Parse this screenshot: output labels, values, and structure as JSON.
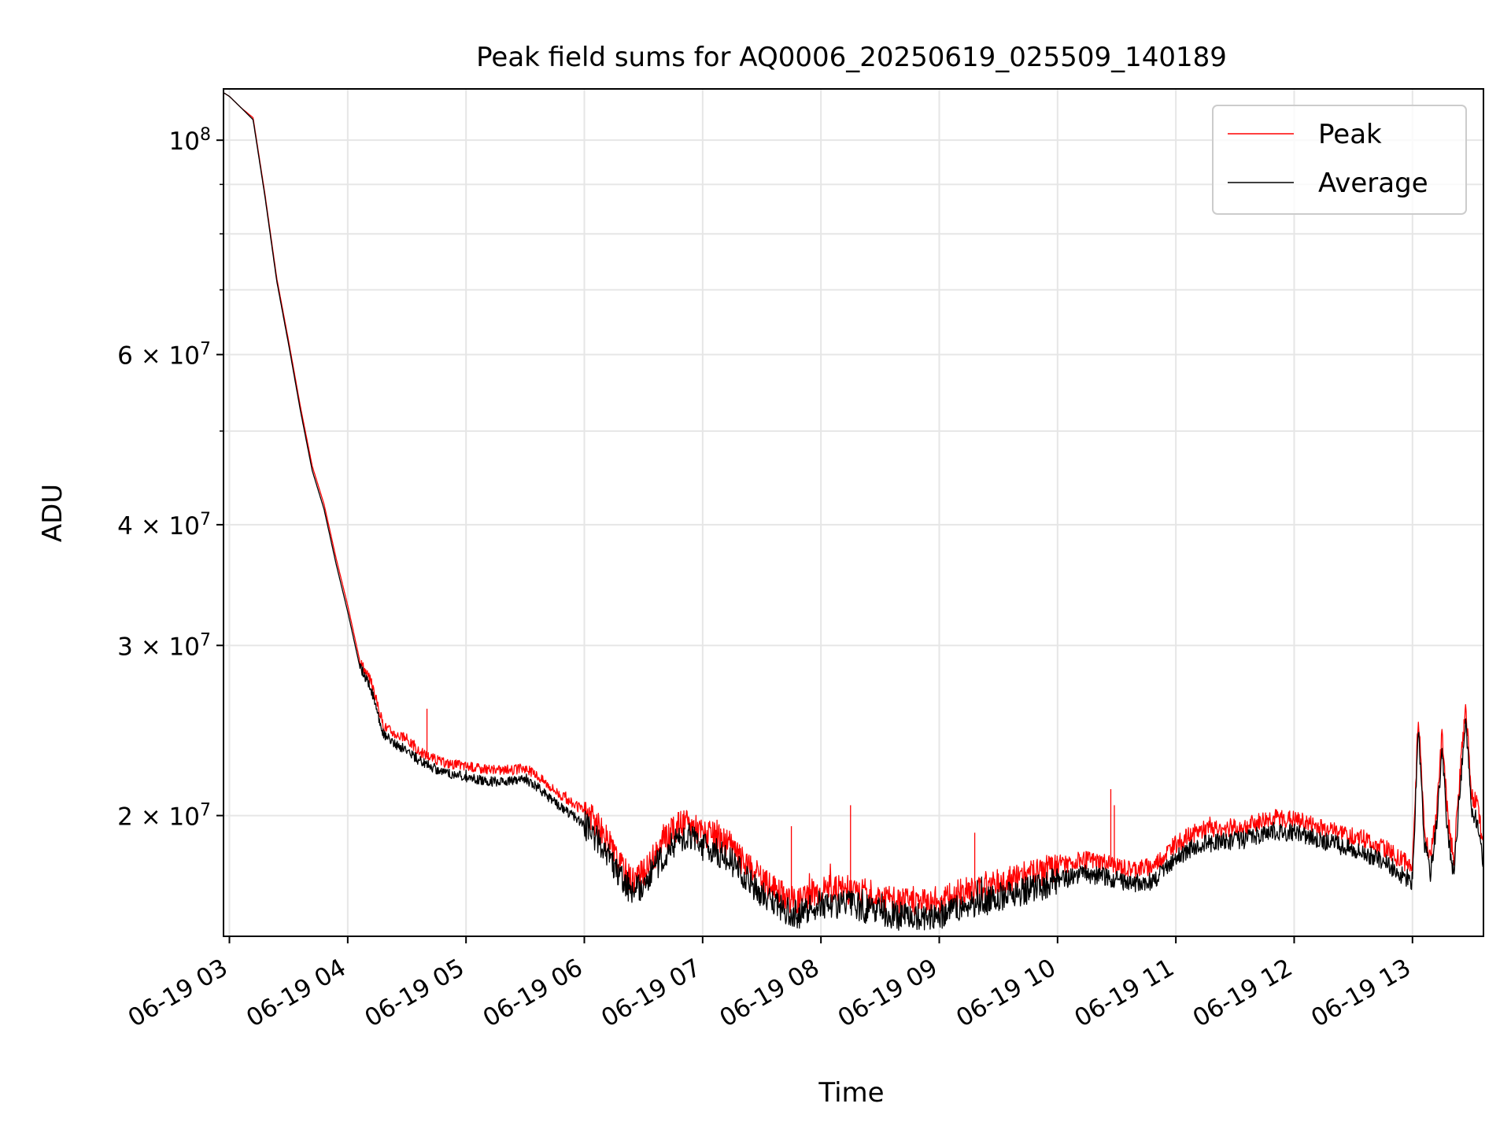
{
  "chart_data": {
    "type": "line",
    "title": "Peak field sums for AQ0006_20250619_025509_140189",
    "xlabel": "Time",
    "ylabel": "ADU",
    "x_unit": "hour of 2025-06-19",
    "xlim": [
      2.95,
      13.6
    ],
    "ylim": [
      15000000,
      113000000
    ],
    "yscale": "log",
    "grid": true,
    "legend_position": "top-right",
    "x_ticks": [
      {
        "value": 3,
        "label": "06-19 03"
      },
      {
        "value": 4,
        "label": "06-19 04"
      },
      {
        "value": 5,
        "label": "06-19 05"
      },
      {
        "value": 6,
        "label": "06-19 06"
      },
      {
        "value": 7,
        "label": "06-19 07"
      },
      {
        "value": 8,
        "label": "06-19 08"
      },
      {
        "value": 9,
        "label": "06-19 09"
      },
      {
        "value": 10,
        "label": "06-19 10"
      },
      {
        "value": 11,
        "label": "06-19 11"
      },
      {
        "value": 12,
        "label": "06-19 12"
      },
      {
        "value": 13,
        "label": "06-19 13"
      }
    ],
    "y_ticks": [
      {
        "value": 100000000,
        "base": "10",
        "exp": "8"
      },
      {
        "value": 60000000,
        "base": "6 × 10",
        "exp": "7"
      },
      {
        "value": 40000000,
        "base": "4 × 10",
        "exp": "7"
      },
      {
        "value": 30000000,
        "base": "3 × 10",
        "exp": "7"
      },
      {
        "value": 20000000,
        "base": "2 × 10",
        "exp": "7"
      }
    ],
    "y_minor_ticks": [
      50000000,
      70000000,
      80000000,
      90000000
    ],
    "series": [
      {
        "name": "Peak",
        "color": "#ff0000",
        "x": [
          2.95,
          3.0,
          3.1,
          3.2,
          3.3,
          3.4,
          3.5,
          3.6,
          3.7,
          3.8,
          3.9,
          4.0,
          4.1,
          4.2,
          4.3,
          4.4,
          4.5,
          4.6,
          4.7,
          4.8,
          5.0,
          5.2,
          5.4,
          5.5,
          5.6,
          5.7,
          5.8,
          6.0,
          6.1,
          6.2,
          6.3,
          6.4,
          6.5,
          6.6,
          6.7,
          6.8,
          6.9,
          7.0,
          7.2,
          7.4,
          7.6,
          7.8,
          7.9,
          8.0,
          8.2,
          8.5,
          8.7,
          9.0,
          9.3,
          9.5,
          9.7,
          10.0,
          10.2,
          10.4,
          10.6,
          10.8,
          11.0,
          11.2,
          11.4,
          11.6,
          11.8,
          12.0,
          12.2,
          12.4,
          12.6,
          12.8,
          12.9,
          13.0,
          13.05,
          13.1,
          13.15,
          13.2,
          13.25,
          13.3,
          13.35,
          13.4,
          13.45,
          13.5,
          13.55,
          13.6
        ],
        "values": [
          112000000,
          111000000,
          108000000,
          105500000,
          88000000,
          72000000,
          62000000,
          53000000,
          46000000,
          42000000,
          37000000,
          33000000,
          29000000,
          27500000,
          24800000,
          24300000,
          24000000,
          23300000,
          23000000,
          22700000,
          22500000,
          22300000,
          22300000,
          22400000,
          22000000,
          21500000,
          21000000,
          20200000,
          19600000,
          18800000,
          17800000,
          17200000,
          17400000,
          18200000,
          19000000,
          19600000,
          19600000,
          19200000,
          18800000,
          17600000,
          16800000,
          16300000,
          16600000,
          16800000,
          16800000,
          16500000,
          16300000,
          16400000,
          16800000,
          17100000,
          17300000,
          17700000,
          18000000,
          17900000,
          17600000,
          17700000,
          18700000,
          19300000,
          19400000,
          19500000,
          19900000,
          19800000,
          19500000,
          19200000,
          18900000,
          18400000,
          18000000,
          17700000,
          25500000,
          19500000,
          18000000,
          20000000,
          24200000,
          19800000,
          18000000,
          22000000,
          26000000,
          21000000,
          20500000,
          18500000
        ]
      },
      {
        "name": "Average",
        "color": "#000000",
        "x": [
          2.95,
          3.0,
          3.1,
          3.2,
          3.3,
          3.4,
          3.5,
          3.6,
          3.7,
          3.8,
          3.9,
          4.0,
          4.1,
          4.2,
          4.3,
          4.4,
          4.5,
          4.6,
          4.7,
          4.8,
          5.0,
          5.2,
          5.4,
          5.5,
          5.6,
          5.7,
          5.8,
          6.0,
          6.1,
          6.2,
          6.3,
          6.4,
          6.5,
          6.6,
          6.7,
          6.8,
          6.9,
          7.0,
          7.2,
          7.4,
          7.6,
          7.8,
          7.9,
          8.0,
          8.2,
          8.5,
          8.7,
          9.0,
          9.3,
          9.5,
          9.7,
          10.0,
          10.2,
          10.4,
          10.6,
          10.8,
          11.0,
          11.2,
          11.4,
          11.6,
          11.8,
          12.0,
          12.2,
          12.4,
          12.6,
          12.8,
          12.9,
          13.0,
          13.05,
          13.1,
          13.15,
          13.2,
          13.25,
          13.3,
          13.35,
          13.4,
          13.45,
          13.5,
          13.55,
          13.6
        ],
        "values": [
          112000000,
          111000000,
          108000000,
          105000000,
          87500000,
          71500000,
          61500000,
          52500000,
          45500000,
          41500000,
          36500000,
          32500000,
          28600000,
          27000000,
          24300000,
          23700000,
          23400000,
          22800000,
          22500000,
          22200000,
          21900000,
          21700000,
          21700000,
          21800000,
          21400000,
          20900000,
          20400000,
          19600000,
          19000000,
          18200000,
          17300000,
          16700000,
          16900000,
          17700000,
          18400000,
          19000000,
          19000000,
          18600000,
          18200000,
          17000000,
          16200000,
          15800000,
          16000000,
          16200000,
          16200000,
          15900000,
          15700000,
          15800000,
          16200000,
          16500000,
          16700000,
          17100000,
          17400000,
          17300000,
          17000000,
          17100000,
          18100000,
          18700000,
          18800000,
          18900000,
          19300000,
          19200000,
          18900000,
          18600000,
          18300000,
          17800000,
          17400000,
          17100000,
          24500000,
          18800000,
          17400000,
          19400000,
          23400000,
          19000000,
          17400000,
          21200000,
          25000000,
          20200000,
          19700000,
          17800000
        ]
      }
    ],
    "spikes": [
      {
        "x": 4.67,
        "value": 25800000
      },
      {
        "x": 7.75,
        "value": 19500000
      },
      {
        "x": 8.25,
        "value": 20500000
      },
      {
        "x": 9.3,
        "value": 19200000
      },
      {
        "x": 10.45,
        "value": 21300000
      },
      {
        "x": 10.48,
        "value": 20500000
      }
    ]
  }
}
